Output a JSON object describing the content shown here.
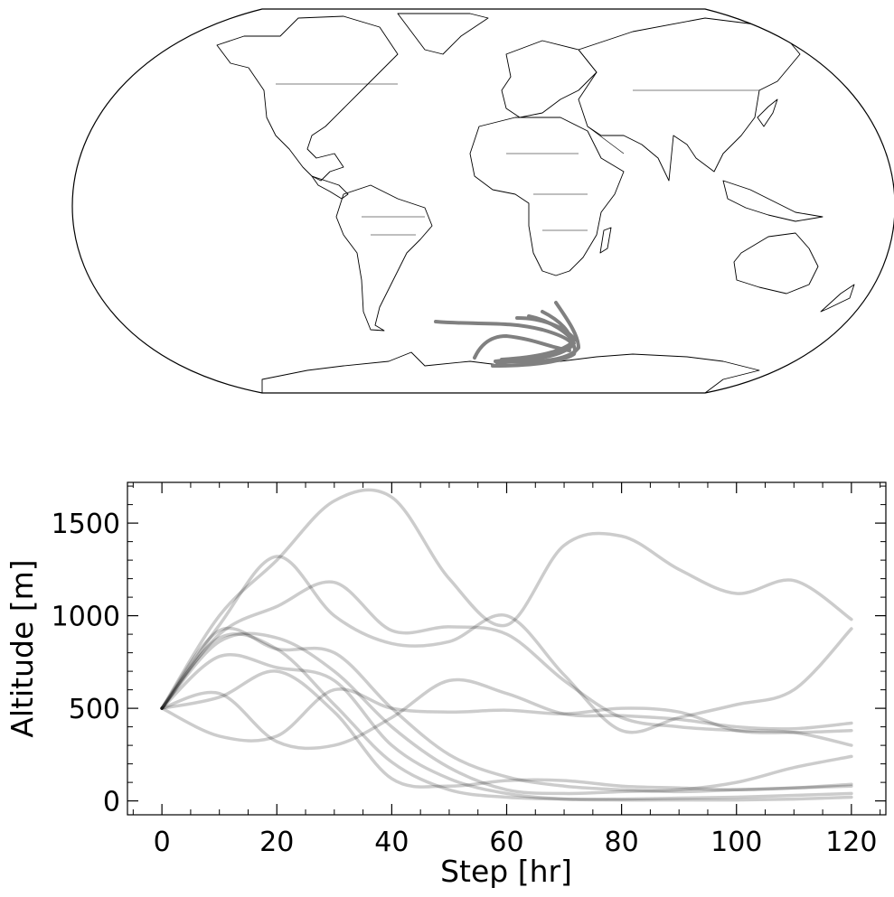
{
  "map": {
    "projection": "robinson",
    "trajectory_color": "#808080"
  },
  "chart_data": {
    "type": "line",
    "xlabel": "Step [hr]",
    "ylabel": "Altitude [m]",
    "xlim": [
      -6,
      126
    ],
    "ylim": [
      -75,
      1720
    ],
    "xticks": [
      0,
      20,
      40,
      60,
      80,
      100,
      120
    ],
    "yticks": [
      0,
      500,
      1000,
      1500
    ],
    "line_color": "#000000",
    "line_alpha": 0.2,
    "x": [
      0,
      10,
      20,
      30,
      40,
      50,
      60,
      70,
      80,
      90,
      100,
      110,
      120
    ],
    "series": [
      {
        "values": [
          500,
          1000,
          1300,
          1620,
          1640,
          1200,
          950,
          1380,
          1430,
          1250,
          1120,
          1190,
          980
        ]
      },
      {
        "values": [
          500,
          900,
          1050,
          1180,
          920,
          940,
          900,
          650,
          450,
          400,
          380,
          370,
          300
        ]
      },
      {
        "values": [
          500,
          950,
          1320,
          1000,
          850,
          860,
          1000,
          680,
          380,
          450,
          520,
          600,
          930
        ]
      },
      {
        "values": [
          500,
          920,
          820,
          800,
          500,
          250,
          130,
          80,
          60,
          50,
          60,
          70,
          80
        ]
      },
      {
        "values": [
          500,
          780,
          720,
          650,
          300,
          120,
          40,
          10,
          5,
          5,
          5,
          10,
          20
        ]
      },
      {
        "values": [
          500,
          580,
          320,
          300,
          450,
          650,
          580,
          470,
          460,
          440,
          400,
          390,
          420
        ]
      },
      {
        "values": [
          500,
          560,
          700,
          480,
          120,
          80,
          110,
          110,
          80,
          70,
          60,
          70,
          90
        ]
      },
      {
        "values": [
          500,
          350,
          350,
          600,
          500,
          480,
          490,
          470,
          500,
          480,
          380,
          370,
          380
        ]
      },
      {
        "values": [
          500,
          880,
          820,
          520,
          210,
          60,
          20,
          10,
          10,
          15,
          20,
          30,
          40
        ]
      },
      {
        "values": [
          500,
          860,
          880,
          700,
          400,
          180,
          60,
          40,
          50,
          60,
          100,
          180,
          240
        ]
      }
    ]
  }
}
